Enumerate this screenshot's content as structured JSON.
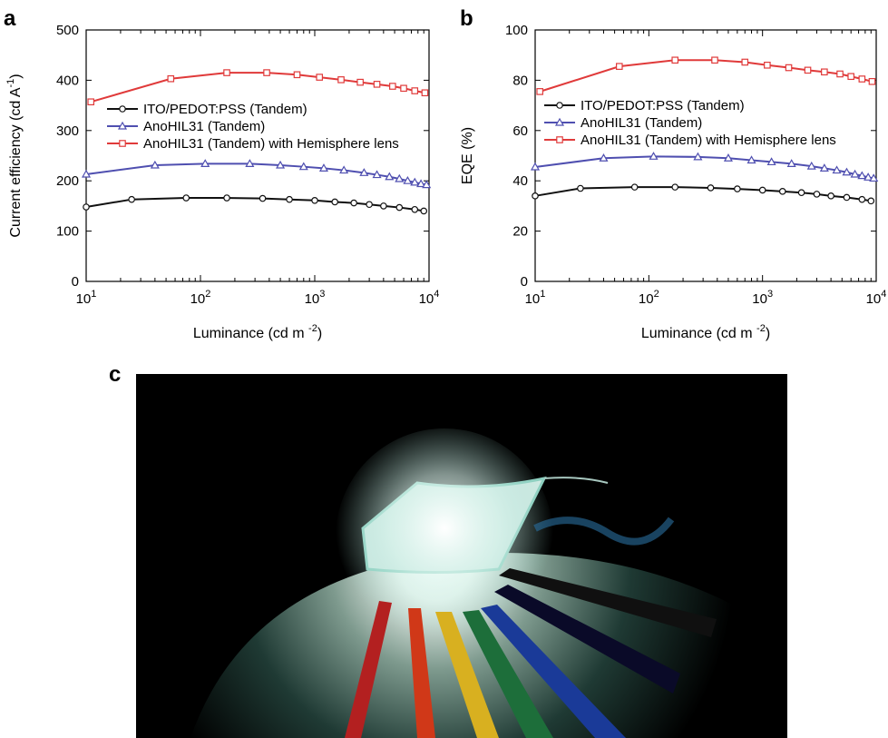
{
  "panels": {
    "a": "a",
    "b": "b",
    "c": "c"
  },
  "colors": {
    "black": "#111111",
    "blue": "#4f4fb0",
    "red": "#e03a3a"
  },
  "chart_data": [
    {
      "type": "line",
      "panel": "a",
      "xlabel_main": "Luminance (cd m",
      "xlabel_sup": "-2",
      "xlabel_tail": ")",
      "ylabel_main": "Current efficiency (cd A",
      "ylabel_sup": "-1",
      "ylabel_tail": ")",
      "xscale": "log",
      "xlim": [
        10,
        10000
      ],
      "ylim": [
        0,
        500
      ],
      "yticks": [
        0,
        100,
        200,
        300,
        400,
        500
      ],
      "xticks": [
        {
          "base": "10",
          "exp": "1"
        },
        {
          "base": "10",
          "exp": "2"
        },
        {
          "base": "10",
          "exp": "3"
        },
        {
          "base": "10",
          "exp": "4"
        }
      ],
      "grid": false,
      "legend_position": "upper-middle",
      "series": [
        {
          "name": "ITO/PEDOT:PSS (Tandem)",
          "color": "#111111",
          "marker": "circle",
          "x": [
            10,
            25,
            75,
            170,
            350,
            600,
            1000,
            1500,
            2200,
            3000,
            4000,
            5500,
            7500,
            9000
          ],
          "y": [
            148,
            163,
            166,
            166,
            165,
            163,
            161,
            158,
            156,
            153,
            150,
            147,
            143,
            140
          ]
        },
        {
          "name": "AnoHIL31 (Tandem)",
          "color": "#4f4fb0",
          "marker": "triangle",
          "x": [
            10,
            40,
            110,
            270,
            500,
            800,
            1200,
            1800,
            2700,
            3500,
            4500,
            5500,
            6500,
            7500,
            8500,
            9500
          ],
          "y": [
            213,
            231,
            234,
            234,
            231,
            228,
            225,
            221,
            216,
            212,
            208,
            204,
            200,
            197,
            194,
            192
          ]
        },
        {
          "name": "AnoHIL31  (Tandem) with Hemisphere lens",
          "color": "#e03a3a",
          "marker": "square",
          "x": [
            11,
            55,
            170,
            380,
            700,
            1100,
            1700,
            2500,
            3500,
            4800,
            6000,
            7500,
            9200
          ],
          "y": [
            357,
            403,
            415,
            415,
            411,
            406,
            401,
            396,
            392,
            388,
            384,
            379,
            375
          ]
        }
      ]
    },
    {
      "type": "line",
      "panel": "b",
      "xlabel_main": "Luminance (cd m",
      "xlabel_sup": "-2",
      "xlabel_tail": ")",
      "ylabel_main": "EQE (%)",
      "xscale": "log",
      "xlim": [
        10,
        10000
      ],
      "ylim": [
        0,
        100
      ],
      "yticks": [
        0,
        20,
        40,
        60,
        80,
        100
      ],
      "xticks": [
        {
          "base": "10",
          "exp": "1"
        },
        {
          "base": "10",
          "exp": "2"
        },
        {
          "base": "10",
          "exp": "3"
        },
        {
          "base": "10",
          "exp": "4"
        }
      ],
      "grid": false,
      "legend_position": "upper-middle",
      "series": [
        {
          "name": "ITO/PEDOT:PSS (Tandem)",
          "color": "#111111",
          "marker": "circle",
          "x": [
            10,
            25,
            75,
            170,
            350,
            600,
            1000,
            1500,
            2200,
            3000,
            4000,
            5500,
            7500,
            9000
          ],
          "y": [
            34,
            37,
            37.5,
            37.5,
            37.2,
            36.8,
            36.3,
            35.8,
            35.3,
            34.7,
            34,
            33.4,
            32.6,
            32
          ]
        },
        {
          "name": "AnoHIL31 (Tandem)",
          "color": "#4f4fb0",
          "marker": "triangle",
          "x": [
            10,
            40,
            110,
            270,
            500,
            800,
            1200,
            1800,
            2700,
            3500,
            4500,
            5500,
            6500,
            7500,
            8500,
            9500
          ],
          "y": [
            45.5,
            49,
            49.7,
            49.5,
            49,
            48.2,
            47.5,
            46.8,
            45.8,
            45,
            44.2,
            43.4,
            42.6,
            42,
            41.4,
            41
          ]
        },
        {
          "name": "AnoHIL31  (Tandem) with Hemisphere lens",
          "color": "#e03a3a",
          "marker": "square",
          "x": [
            11,
            55,
            170,
            380,
            700,
            1100,
            1700,
            2500,
            3500,
            4800,
            6000,
            7500,
            9200
          ],
          "y": [
            75.5,
            85.5,
            88,
            88,
            87.2,
            86,
            85,
            84,
            83.3,
            82.5,
            81.5,
            80.5,
            79.5
          ]
        }
      ]
    }
  ]
}
